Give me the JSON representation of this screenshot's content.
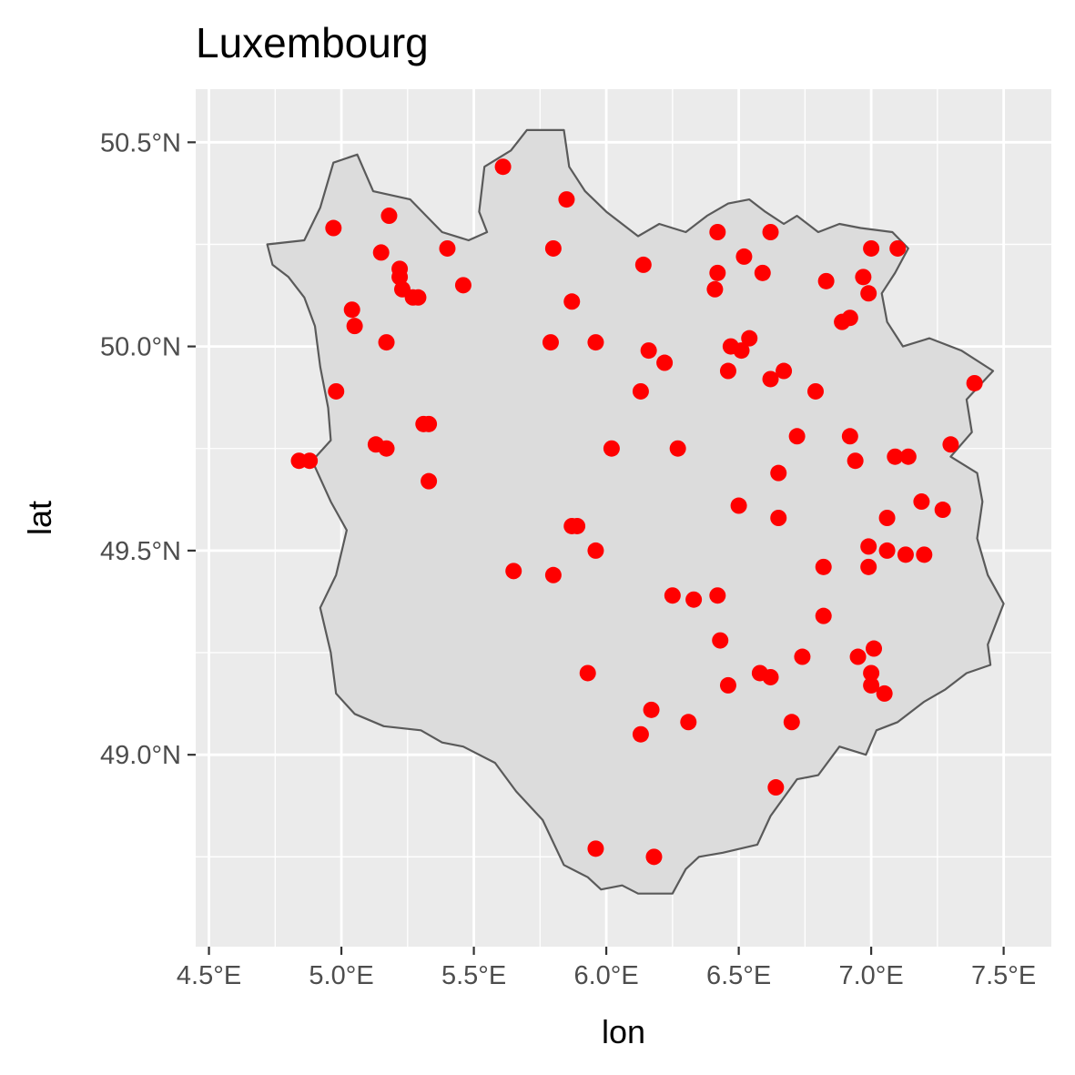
{
  "chart_data": {
    "type": "scatter",
    "title": "Luxembourg",
    "xlabel": "lon",
    "ylabel": "lat",
    "xlim": [
      4.45,
      7.68
    ],
    "ylim": [
      48.53,
      50.63
    ],
    "x_ticks": [
      {
        "value": 4.5,
        "label": "4.5°E"
      },
      {
        "value": 5.0,
        "label": "5.0°E"
      },
      {
        "value": 5.5,
        "label": "5.5°E"
      },
      {
        "value": 6.0,
        "label": "6.0°E"
      },
      {
        "value": 6.5,
        "label": "6.5°E"
      },
      {
        "value": 7.0,
        "label": "7.0°E"
      },
      {
        "value": 7.5,
        "label": "7.5°E"
      }
    ],
    "y_ticks": [
      {
        "value": 49.0,
        "label": "49.0°N"
      },
      {
        "value": 49.5,
        "label": "49.5°N"
      },
      {
        "value": 50.0,
        "label": "50.0°N"
      },
      {
        "value": 50.5,
        "label": "50.5°N"
      }
    ],
    "grid": true,
    "legend": "none",
    "background_color": "#ebebeb",
    "grid_color": "#ffffff",
    "region_fill": "#dcdcdc",
    "region_stroke": "#5a5a5a",
    "point_color": "#ff0000",
    "region_outline": [
      [
        4.72,
        50.25
      ],
      [
        4.86,
        50.26
      ],
      [
        4.92,
        50.34
      ],
      [
        4.97,
        50.45
      ],
      [
        5.06,
        50.47
      ],
      [
        5.12,
        50.38
      ],
      [
        5.26,
        50.36
      ],
      [
        5.32,
        50.32
      ],
      [
        5.38,
        50.28
      ],
      [
        5.48,
        50.26
      ],
      [
        5.55,
        50.28
      ],
      [
        5.52,
        50.33
      ],
      [
        5.54,
        50.44
      ],
      [
        5.64,
        50.48
      ],
      [
        5.7,
        50.53
      ],
      [
        5.84,
        50.53
      ],
      [
        5.86,
        50.44
      ],
      [
        5.92,
        50.38
      ],
      [
        6.0,
        50.33
      ],
      [
        6.12,
        50.27
      ],
      [
        6.2,
        50.3
      ],
      [
        6.3,
        50.28
      ],
      [
        6.38,
        50.32
      ],
      [
        6.46,
        50.35
      ],
      [
        6.54,
        50.36
      ],
      [
        6.6,
        50.33
      ],
      [
        6.67,
        50.3
      ],
      [
        6.72,
        50.32
      ],
      [
        6.8,
        50.28
      ],
      [
        6.88,
        50.3
      ],
      [
        6.96,
        50.29
      ],
      [
        7.08,
        50.28
      ],
      [
        7.14,
        50.24
      ],
      [
        7.09,
        50.18
      ],
      [
        7.04,
        50.13
      ],
      [
        7.06,
        50.06
      ],
      [
        7.12,
        50.0
      ],
      [
        7.22,
        50.02
      ],
      [
        7.34,
        49.99
      ],
      [
        7.46,
        49.94
      ],
      [
        7.36,
        49.87
      ],
      [
        7.38,
        49.79
      ],
      [
        7.3,
        49.73
      ],
      [
        7.4,
        49.69
      ],
      [
        7.42,
        49.62
      ],
      [
        7.4,
        49.53
      ],
      [
        7.44,
        49.44
      ],
      [
        7.5,
        49.37
      ],
      [
        7.44,
        49.27
      ],
      [
        7.45,
        49.22
      ],
      [
        7.36,
        49.2
      ],
      [
        7.28,
        49.16
      ],
      [
        7.2,
        49.13
      ],
      [
        7.1,
        49.08
      ],
      [
        7.02,
        49.06
      ],
      [
        6.98,
        49.0
      ],
      [
        6.88,
        49.02
      ],
      [
        6.8,
        48.95
      ],
      [
        6.72,
        48.94
      ],
      [
        6.62,
        48.85
      ],
      [
        6.57,
        48.78
      ],
      [
        6.44,
        48.76
      ],
      [
        6.35,
        48.75
      ],
      [
        6.3,
        48.72
      ],
      [
        6.25,
        48.66
      ],
      [
        6.12,
        48.66
      ],
      [
        6.06,
        48.68
      ],
      [
        5.98,
        48.67
      ],
      [
        5.93,
        48.7
      ],
      [
        5.84,
        48.73
      ],
      [
        5.76,
        48.84
      ],
      [
        5.66,
        48.91
      ],
      [
        5.58,
        48.98
      ],
      [
        5.46,
        49.02
      ],
      [
        5.38,
        49.03
      ],
      [
        5.3,
        49.06
      ],
      [
        5.16,
        49.07
      ],
      [
        5.05,
        49.1
      ],
      [
        4.98,
        49.15
      ],
      [
        4.96,
        49.25
      ],
      [
        4.92,
        49.36
      ],
      [
        4.98,
        49.44
      ],
      [
        5.02,
        49.55
      ],
      [
        4.96,
        49.62
      ],
      [
        4.89,
        49.72
      ],
      [
        4.96,
        49.77
      ],
      [
        4.95,
        49.85
      ],
      [
        4.92,
        49.95
      ],
      [
        4.9,
        50.05
      ],
      [
        4.86,
        50.12
      ],
      [
        4.8,
        50.17
      ],
      [
        4.74,
        50.2
      ]
    ],
    "points": [
      [
        5.61,
        50.44
      ],
      [
        5.85,
        50.36
      ],
      [
        4.97,
        50.29
      ],
      [
        5.18,
        50.32
      ],
      [
        5.15,
        50.23
      ],
      [
        5.4,
        50.24
      ],
      [
        5.8,
        50.24
      ],
      [
        5.22,
        50.19
      ],
      [
        5.22,
        50.17
      ],
      [
        5.23,
        50.14
      ],
      [
        5.27,
        50.12
      ],
      [
        5.29,
        50.12
      ],
      [
        5.46,
        50.15
      ],
      [
        5.87,
        50.11
      ],
      [
        6.14,
        50.2
      ],
      [
        5.04,
        50.09
      ],
      [
        5.05,
        50.05
      ],
      [
        5.17,
        50.01
      ],
      [
        5.79,
        50.01
      ],
      [
        5.96,
        50.01
      ],
      [
        6.42,
        50.28
      ],
      [
        6.62,
        50.28
      ],
      [
        6.52,
        50.22
      ],
      [
        6.42,
        50.18
      ],
      [
        6.41,
        50.14
      ],
      [
        6.59,
        50.18
      ],
      [
        7.0,
        50.24
      ],
      [
        7.1,
        50.24
      ],
      [
        6.83,
        50.16
      ],
      [
        6.97,
        50.17
      ],
      [
        6.99,
        50.13
      ],
      [
        6.89,
        50.06
      ],
      [
        6.92,
        50.07
      ],
      [
        6.16,
        49.99
      ],
      [
        6.22,
        49.96
      ],
      [
        6.47,
        50.0
      ],
      [
        6.51,
        49.99
      ],
      [
        6.54,
        50.02
      ],
      [
        6.46,
        49.94
      ],
      [
        6.62,
        49.92
      ],
      [
        6.67,
        49.94
      ],
      [
        6.13,
        49.89
      ],
      [
        6.79,
        49.89
      ],
      [
        7.39,
        49.91
      ],
      [
        4.98,
        49.89
      ],
      [
        5.31,
        49.81
      ],
      [
        5.33,
        49.81
      ],
      [
        5.13,
        49.76
      ],
      [
        5.17,
        49.75
      ],
      [
        4.84,
        49.72
      ],
      [
        4.88,
        49.72
      ],
      [
        5.33,
        49.67
      ],
      [
        6.02,
        49.75
      ],
      [
        6.27,
        49.75
      ],
      [
        6.72,
        49.78
      ],
      [
        6.92,
        49.78
      ],
      [
        6.94,
        49.72
      ],
      [
        7.09,
        49.73
      ],
      [
        7.14,
        49.73
      ],
      [
        7.3,
        49.76
      ],
      [
        6.65,
        49.69
      ],
      [
        6.5,
        49.61
      ],
      [
        6.65,
        49.58
      ],
      [
        7.19,
        49.62
      ],
      [
        7.27,
        49.6
      ],
      [
        7.06,
        49.58
      ],
      [
        5.87,
        49.56
      ],
      [
        5.89,
        49.56
      ],
      [
        5.96,
        49.5
      ],
      [
        6.99,
        49.51
      ],
      [
        7.06,
        49.5
      ],
      [
        7.13,
        49.49
      ],
      [
        7.2,
        49.49
      ],
      [
        5.65,
        49.45
      ],
      [
        5.8,
        49.44
      ],
      [
        6.82,
        49.46
      ],
      [
        6.99,
        49.46
      ],
      [
        6.25,
        49.39
      ],
      [
        6.33,
        49.38
      ],
      [
        6.42,
        49.39
      ],
      [
        6.82,
        49.34
      ],
      [
        6.43,
        49.28
      ],
      [
        6.74,
        49.24
      ],
      [
        6.95,
        49.24
      ],
      [
        7.01,
        49.26
      ],
      [
        5.93,
        49.2
      ],
      [
        6.46,
        49.17
      ],
      [
        6.58,
        49.2
      ],
      [
        6.62,
        49.19
      ],
      [
        7.0,
        49.2
      ],
      [
        7.0,
        49.17
      ],
      [
        7.05,
        49.15
      ],
      [
        6.17,
        49.11
      ],
      [
        6.31,
        49.08
      ],
      [
        6.7,
        49.08
      ],
      [
        6.13,
        49.05
      ],
      [
        6.64,
        48.92
      ],
      [
        5.96,
        48.77
      ],
      [
        6.18,
        48.75
      ]
    ]
  }
}
